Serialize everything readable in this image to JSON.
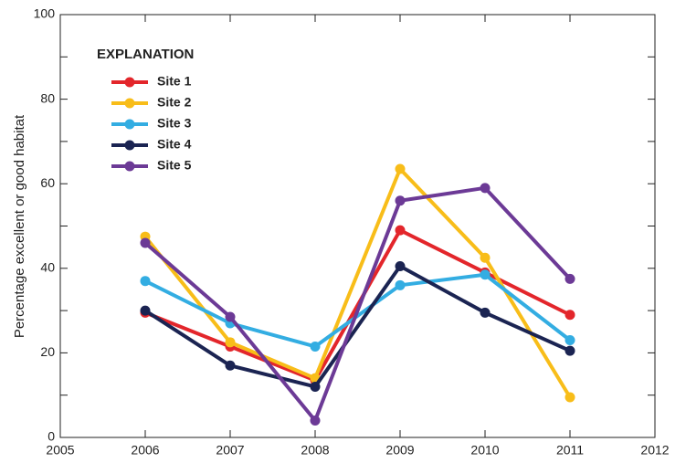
{
  "chart_data": {
    "type": "line",
    "y_label": "Percentage excellent or good habitat",
    "legend_title": "EXPLANATION",
    "legend": "upper-left",
    "x": [
      2006,
      2007,
      2008,
      2009,
      2010,
      2011
    ],
    "xlim": [
      2005,
      2012
    ],
    "xticks": [
      2005,
      2006,
      2007,
      2008,
      2009,
      2010,
      2011,
      2012
    ],
    "ylim": [
      0,
      100
    ],
    "yticks": [
      0,
      20,
      40,
      60,
      80,
      100
    ],
    "yminor": [
      10,
      30,
      50,
      70,
      90
    ],
    "series": [
      {
        "name": "Site 1",
        "color": "#e3262b",
        "values": [
          29.5,
          21.5,
          13.5,
          49,
          39,
          29
        ]
      },
      {
        "name": "Site 2",
        "color": "#f8bd19",
        "values": [
          47.5,
          22.5,
          14,
          63.5,
          42.5,
          9.5
        ]
      },
      {
        "name": "Site 3",
        "color": "#33ade2",
        "values": [
          37,
          27,
          21.5,
          36,
          38.5,
          23
        ]
      },
      {
        "name": "Site 4",
        "color": "#1b2452",
        "values": [
          30,
          17,
          12,
          40.5,
          29.5,
          20.5
        ]
      },
      {
        "name": "Site 5",
        "color": "#6c3a96",
        "values": [
          46,
          28.5,
          4,
          56,
          59,
          37.5
        ]
      }
    ]
  }
}
